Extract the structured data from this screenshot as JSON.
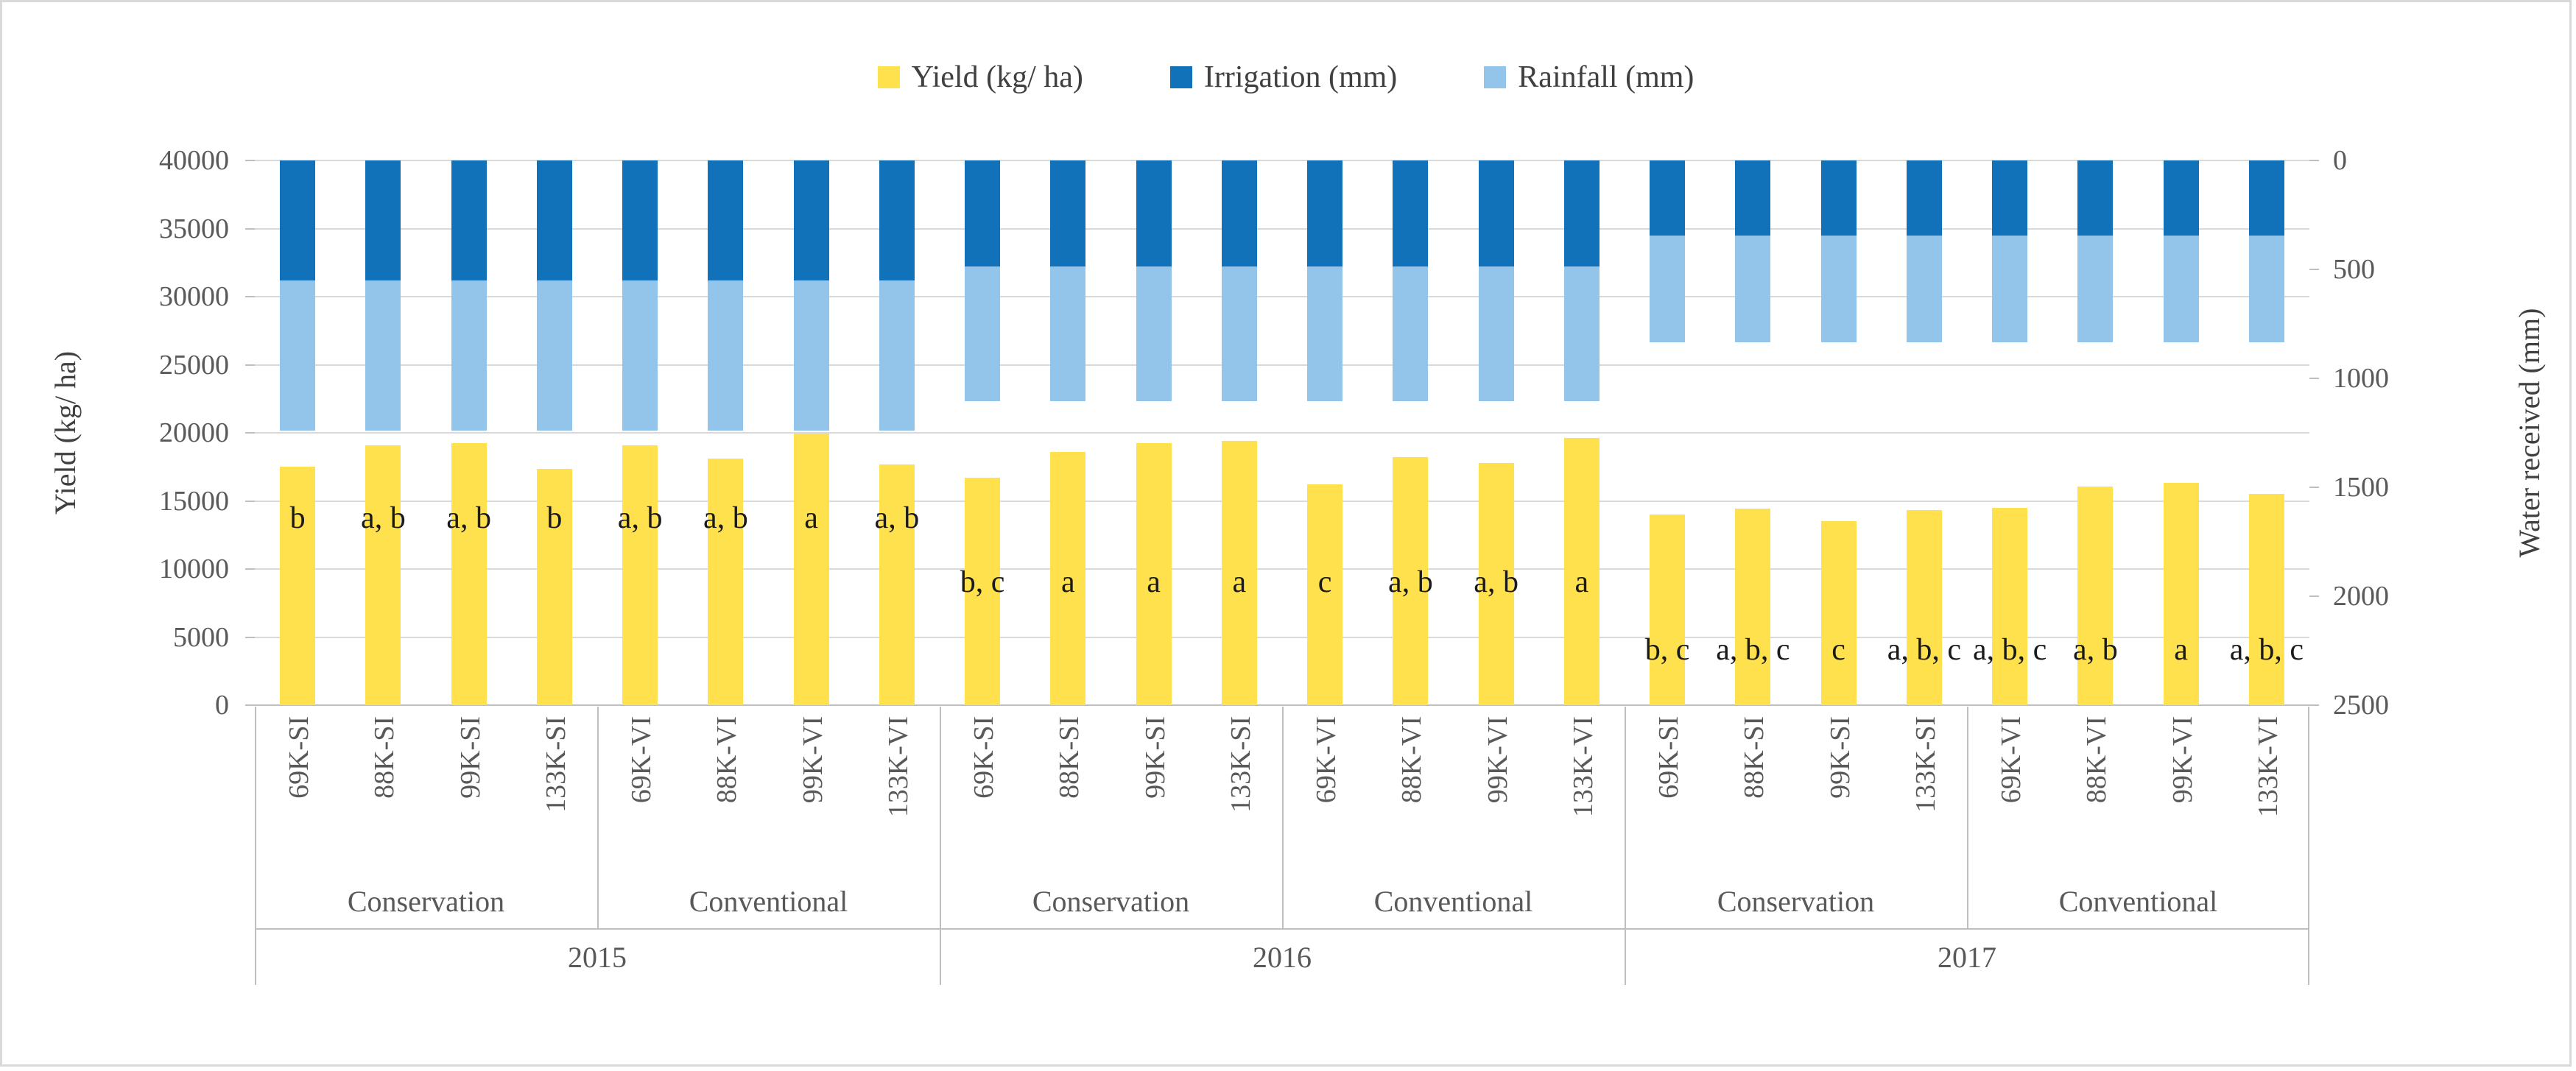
{
  "colors": {
    "yield": "#ffe14d",
    "irrigation": "#1272b9",
    "rainfall": "#92c5e9",
    "gridline": "#d9d9d9",
    "axis_line": "#bfbfbf",
    "tick_text": "#595959",
    "letter_text": "#1a1a1a",
    "border": "#d9d9d9"
  },
  "legend": {
    "items": [
      {
        "label": "Yield (kg/ ha)",
        "series": "yield"
      },
      {
        "label": "Irrigation (mm)",
        "series": "irrigation"
      },
      {
        "label": "Rainfall (mm)",
        "series": "rainfall"
      }
    ]
  },
  "chart_data": {
    "type": "bar",
    "title": "",
    "left_axis": {
      "label": "Yield (kg/ ha)",
      "min": 0,
      "max": 40000,
      "tick_step": 5000
    },
    "right_axis": {
      "label": "Water received (mm)",
      "min": 0,
      "max": 2500,
      "tick_step": 500,
      "inverted_from_top": true
    },
    "legend": [
      "Yield (kg/ ha)",
      "Irrigation (mm)",
      "Rainfall (mm)"
    ],
    "grid": true,
    "years": [
      {
        "year": "2015",
        "irrigation_mm": 550,
        "rainfall_mm": 690,
        "letters_row_value": 13750,
        "groups": [
          {
            "tillage": "Conservation",
            "bars": [
              {
                "treatment": "69K-SI",
                "yield_kg_ha": 17500,
                "letters": "b"
              },
              {
                "treatment": "88K-SI",
                "yield_kg_ha": 19100,
                "letters": "a, b"
              },
              {
                "treatment": "99K-SI",
                "yield_kg_ha": 19250,
                "letters": "a, b"
              },
              {
                "treatment": "133K-SI",
                "yield_kg_ha": 17350,
                "letters": "b"
              }
            ]
          },
          {
            "tillage": "Conventional",
            "bars": [
              {
                "treatment": "69K-VI",
                "yield_kg_ha": 19100,
                "letters": "a, b"
              },
              {
                "treatment": "88K-VI",
                "yield_kg_ha": 18100,
                "letters": "a, b"
              },
              {
                "treatment": "99K-VI",
                "yield_kg_ha": 19950,
                "letters": "a"
              },
              {
                "treatment": "133K-VI",
                "yield_kg_ha": 17650,
                "letters": "a, b"
              }
            ]
          }
        ]
      },
      {
        "year": "2016",
        "irrigation_mm": 485,
        "rainfall_mm": 620,
        "letters_row_value": 9050,
        "groups": [
          {
            "tillage": "Conservation",
            "bars": [
              {
                "treatment": "69K-SI",
                "yield_kg_ha": 16700,
                "letters": "b, c"
              },
              {
                "treatment": "88K-SI",
                "yield_kg_ha": 18600,
                "letters": "a"
              },
              {
                "treatment": "99K-SI",
                "yield_kg_ha": 19250,
                "letters": "a"
              },
              {
                "treatment": "133K-SI",
                "yield_kg_ha": 19400,
                "letters": "a"
              }
            ]
          },
          {
            "tillage": "Conventional",
            "bars": [
              {
                "treatment": "69K-VI",
                "yield_kg_ha": 16200,
                "letters": "c"
              },
              {
                "treatment": "88K-VI",
                "yield_kg_ha": 18200,
                "letters": "a, b"
              },
              {
                "treatment": "99K-VI",
                "yield_kg_ha": 17800,
                "letters": "a, b"
              },
              {
                "treatment": "133K-VI",
                "yield_kg_ha": 19600,
                "letters": "a"
              }
            ]
          }
        ]
      },
      {
        "year": "2017",
        "irrigation_mm": 345,
        "rainfall_mm": 490,
        "letters_row_value": 4050,
        "groups": [
          {
            "tillage": "Conservation",
            "bars": [
              {
                "treatment": "69K-SI",
                "yield_kg_ha": 14000,
                "letters": "b, c"
              },
              {
                "treatment": "88K-SI",
                "yield_kg_ha": 14450,
                "letters": "a, b, c"
              },
              {
                "treatment": "99K-SI",
                "yield_kg_ha": 13500,
                "letters": "c"
              },
              {
                "treatment": "133K-SI",
                "yield_kg_ha": 14300,
                "letters": "a, b, c"
              }
            ]
          },
          {
            "tillage": "Conventional",
            "bars": [
              {
                "treatment": "69K-VI",
                "yield_kg_ha": 14500,
                "letters": "a, b, c"
              },
              {
                "treatment": "88K-VI",
                "yield_kg_ha": 16050,
                "letters": "a, b"
              },
              {
                "treatment": "99K-VI",
                "yield_kg_ha": 16300,
                "letters": "a"
              },
              {
                "treatment": "133K-VI",
                "yield_kg_ha": 15500,
                "letters": "a, b, c"
              }
            ]
          }
        ]
      }
    ]
  }
}
